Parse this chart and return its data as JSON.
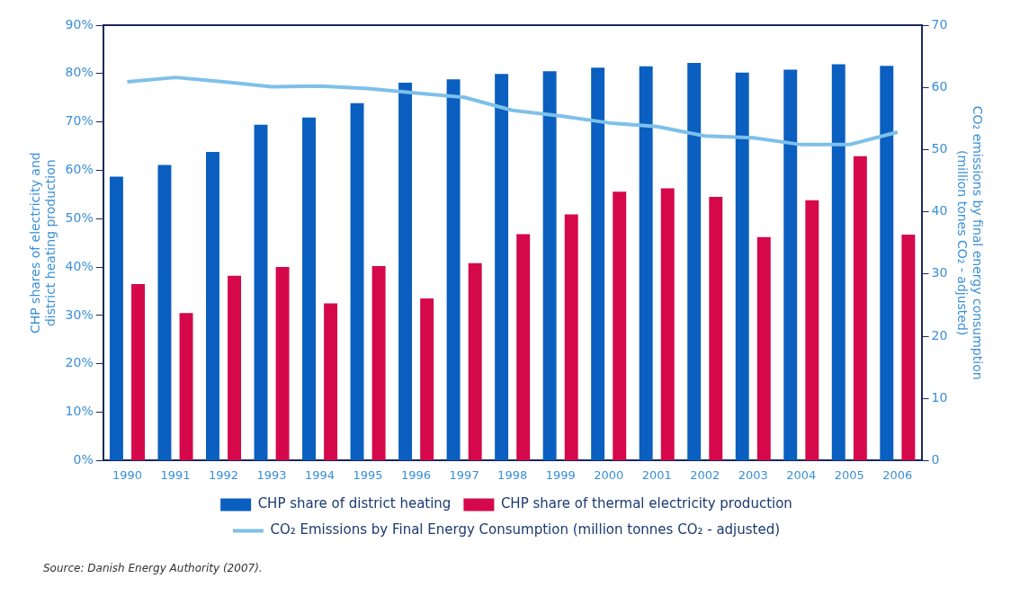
{
  "chart_data": {
    "type": "bar",
    "ylabel": "CHP shares of electricity and\ndistrict heating production",
    "y2label": "CO₂ emissions by final energy consumption\n(million tones CO₂ - adjusted)",
    "categories": [
      "1990",
      "1991",
      "1992",
      "1993",
      "1994",
      "1995",
      "1996",
      "1997",
      "1998",
      "1999",
      "2000",
      "2001",
      "2002",
      "2003",
      "2004",
      "2005",
      "2006"
    ],
    "series": [
      {
        "name": "CHP share of district heating",
        "color": "#0a5fc0",
        "values": [
          58.7,
          61.1,
          63.8,
          69.4,
          70.9,
          73.9,
          78.1,
          78.8,
          79.9,
          80.5,
          81.2,
          81.5,
          82.2,
          80.2,
          80.8,
          81.9,
          81.6
        ]
      },
      {
        "name": "CHP share of thermal electricity production",
        "color": "#d4084a",
        "values": [
          36.5,
          30.5,
          38.2,
          40,
          32.5,
          40.2,
          33.5,
          40.8,
          46.8,
          50.9,
          55.6,
          56.3,
          54.5,
          46.2,
          53.8,
          62.9,
          46.7
        ]
      },
      {
        "name": "CO₂ Emissions by Final Energy Consumption (million tonnes CO₂ - adjusted)",
        "type": "line",
        "axis": "y2",
        "color": "#7ec0ea",
        "values": [
          60.9,
          61.6,
          60.9,
          60.1,
          60.2,
          59.8,
          59.1,
          58.4,
          56.3,
          55.4,
          54.3,
          53.7,
          52.2,
          51.9,
          50.8,
          50.8,
          52.8
        ]
      }
    ],
    "ylim": [
      0,
      90
    ],
    "yticks": [
      {
        "value": 0,
        "label": "0%"
      },
      {
        "value": 10,
        "label": "10%"
      },
      {
        "value": 20,
        "label": "20%"
      },
      {
        "value": 30,
        "label": "30%"
      },
      {
        "value": 40,
        "label": "40%"
      },
      {
        "value": 50,
        "label": "50%"
      },
      {
        "value": 60,
        "label": "60%"
      },
      {
        "value": 70,
        "label": "70%"
      },
      {
        "value": 80,
        "label": "80%"
      },
      {
        "value": 90,
        "label": "90%"
      }
    ],
    "y2lim": [
      0,
      70
    ],
    "y2ticks": [
      0,
      10,
      20,
      30,
      40,
      50,
      60,
      70
    ],
    "legend": "bottom",
    "grid": false,
    "marker": "none",
    "line_style": "solid",
    "annotations": [
      "Source: Danish Energy Authority (2007)."
    ]
  }
}
